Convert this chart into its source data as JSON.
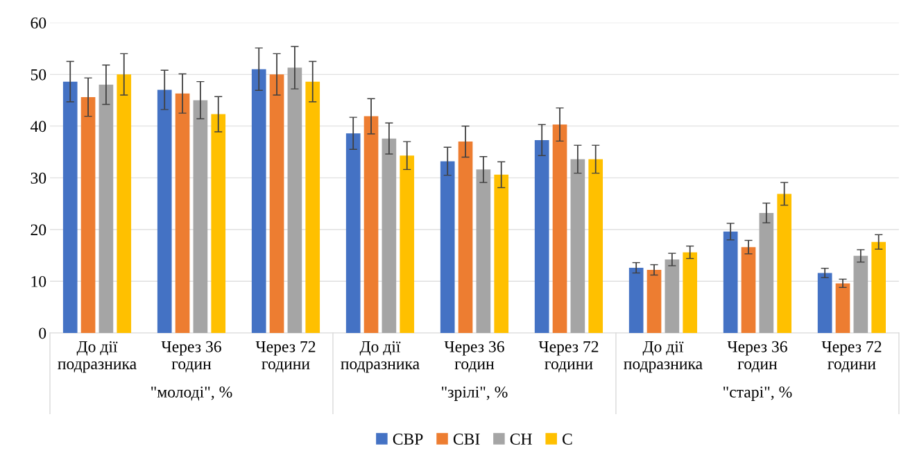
{
  "chart_data": {
    "type": "bar",
    "categories": [
      "До дії\nподразника",
      "Через 36\nгодин",
      "Через 72\nгодини",
      "До дії\nподразника",
      "Через 36\nгодин",
      "Через 72\nгодини",
      "До дії\nподразника",
      "Через 36\nгодин",
      "Через 72\nгодини"
    ],
    "series": [
      {
        "name": "СВР",
        "color": "#4472c4",
        "values": [
          48.6,
          47,
          51,
          38.6,
          33.2,
          37.3,
          12.6,
          19.6,
          11.6
        ],
        "errors": [
          3.9,
          3.8,
          4.1,
          3.1,
          2.7,
          3,
          1,
          1.6,
          0.9
        ]
      },
      {
        "name": "СВІ",
        "color": "#ed7d31",
        "values": [
          45.6,
          46.3,
          50,
          41.9,
          37,
          40.3,
          12.2,
          16.6,
          9.6
        ],
        "errors": [
          3.7,
          3.8,
          4,
          3.4,
          3,
          3.2,
          1,
          1.3,
          0.8
        ]
      },
      {
        "name": "СН",
        "color": "#a5a5a5",
        "values": [
          48,
          45,
          51.3,
          37.6,
          31.6,
          33.6,
          14.2,
          23.2,
          14.9
        ],
        "errors": [
          3.8,
          3.6,
          4.1,
          3,
          2.5,
          2.7,
          1.2,
          1.9,
          1.2
        ]
      },
      {
        "name": "С",
        "color": "#ffc000",
        "values": [
          50,
          42.3,
          48.6,
          34.3,
          30.6,
          33.6,
          15.6,
          26.9,
          17.6
        ],
        "errors": [
          4,
          3.4,
          3.9,
          2.7,
          2.5,
          2.7,
          1.2,
          2.2,
          1.4
        ]
      }
    ],
    "annotations": [
      "\"молоді\", %",
      "\"зрілі\", %",
      "\"старі\", %"
    ],
    "ylim": [
      0,
      60
    ],
    "yticks": [
      0,
      10,
      20,
      30,
      40,
      50,
      60
    ],
    "grid": "y",
    "legend": "bottom"
  }
}
